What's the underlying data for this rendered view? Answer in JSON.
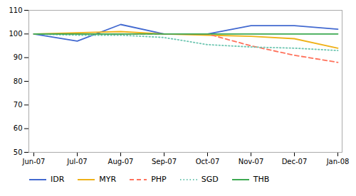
{
  "chart_data": {
    "type": "line",
    "categories": [
      "Jun-07",
      "Jul-07",
      "Aug-07",
      "Sep-07",
      "Oct-07",
      "Nov-07",
      "Dec-07",
      "Jan-08"
    ],
    "series": [
      {
        "name": "IDR",
        "values": [
          100,
          97,
          104,
          100,
          100,
          103.5,
          103.5,
          102
        ],
        "line_style": "solid"
      },
      {
        "name": "MYR",
        "values": [
          100,
          100.5,
          101,
          100,
          99.5,
          99,
          98,
          94
        ],
        "line_style": "solid"
      },
      {
        "name": "PHP",
        "values": [
          100,
          100,
          100,
          100,
          100,
          95,
          91,
          88
        ],
        "line_style": "dashed"
      },
      {
        "name": "SGD",
        "values": [
          100,
          99.5,
          99.5,
          98.5,
          95.5,
          94.5,
          94,
          93
        ],
        "line_style": "dotted"
      },
      {
        "name": "THB",
        "values": [
          100,
          100,
          100,
          100,
          100,
          100,
          100,
          100
        ],
        "line_style": "solid"
      }
    ],
    "ylim": [
      50,
      110
    ],
    "yticks": [
      50,
      60,
      70,
      80,
      90,
      100,
      110
    ],
    "grid": false,
    "legend": "bottom"
  }
}
